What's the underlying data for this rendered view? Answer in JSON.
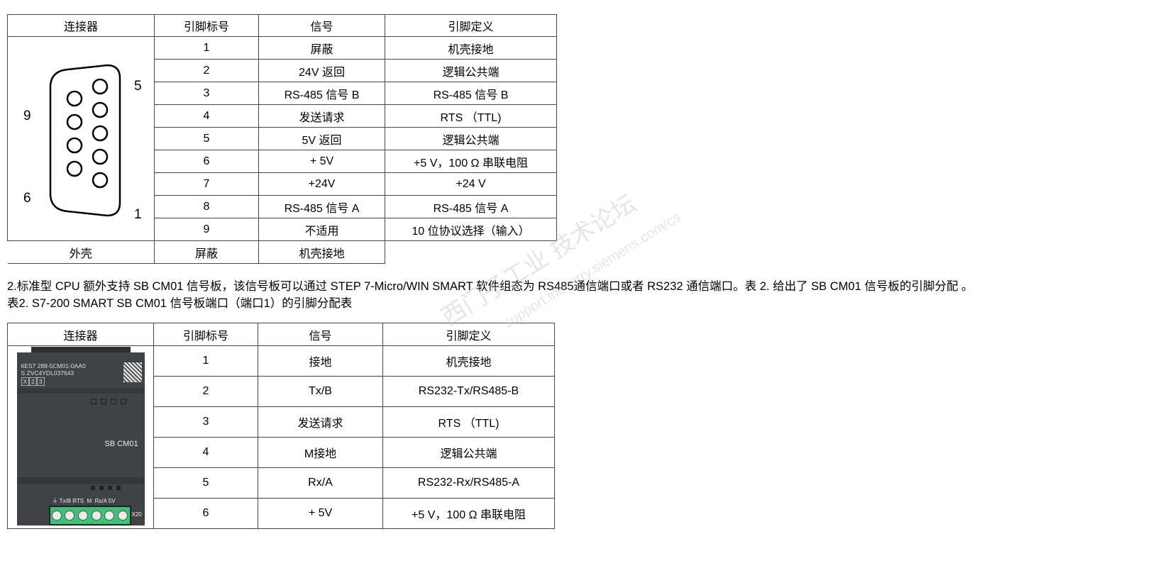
{
  "table1": {
    "headers": [
      "连接器",
      "引脚标号",
      "信号",
      "引脚定义"
    ],
    "connector_labels": {
      "pin5": "5",
      "pin9": "9",
      "pin6": "6",
      "pin1": "1"
    },
    "rows": [
      [
        "1",
        "屏蔽",
        "机壳接地"
      ],
      [
        "2",
        "24V 返回",
        "逻辑公共端"
      ],
      [
        "3",
        "RS-485 信号 B",
        "RS-485 信号 B"
      ],
      [
        "4",
        "发送请求",
        "RTS （TTL)"
      ],
      [
        "5",
        "5V 返回",
        "逻辑公共端"
      ],
      [
        "6",
        "+ 5V",
        "+5 V，100 Ω 串联电阻"
      ],
      [
        "7",
        "+24V",
        "+24 V"
      ],
      [
        "8",
        "RS-485 信号 A",
        "RS-485 信号 A"
      ],
      [
        "9",
        "不适用",
        "10 位协议选择（输入）"
      ]
    ],
    "last_row": [
      "外壳",
      "屏蔽",
      "机壳接地"
    ]
  },
  "paragraph": "2.标准型 CPU 额外支持 SB CM01 信号板，该信号板可以通过 STEP 7-Micro/WIN SMART 软件组态为 RS485通信端口或者 RS232 通信端口。表 2. 给出了 SB CM01 信号板的引脚分配 。",
  "caption": "表2. S7-200 SMART SB CM01 信号板端口（端口1）的引脚分配表",
  "table2": {
    "headers": [
      "连接器",
      "引脚标号",
      "信号",
      "引脚定义"
    ],
    "rows": [
      [
        "1",
        "接地",
        "机壳接地"
      ],
      [
        "2",
        "Tx/B",
        "RS232-Tx/RS485-B"
      ],
      [
        "3",
        "发送请求",
        "RTS （TTL)"
      ],
      [
        "4",
        "M接地",
        "逻辑公共端"
      ],
      [
        "5",
        "Rx/A",
        "RS232-Rx/RS485-A"
      ],
      [
        "6",
        "+ 5V",
        "+5 V，100 Ω 串联电阻"
      ]
    ],
    "device": {
      "order_no": "6ES7 288-5CM01-0AA0",
      "serial": "S ZVC4YDL037643",
      "version": [
        "X",
        "2",
        "3"
      ],
      "name": "SB CM01",
      "terminal_labels": "Tx/B RTS  M  Rx/A 5V",
      "connector_id": "X20"
    }
  },
  "watermark": {
    "text": "西门子工业 技术论坛",
    "url": "support.industry.siemens.com/cs"
  },
  "colors": {
    "device_body": "#3f4246",
    "terminal_green": "#3fbf7a",
    "border": "#444444"
  }
}
